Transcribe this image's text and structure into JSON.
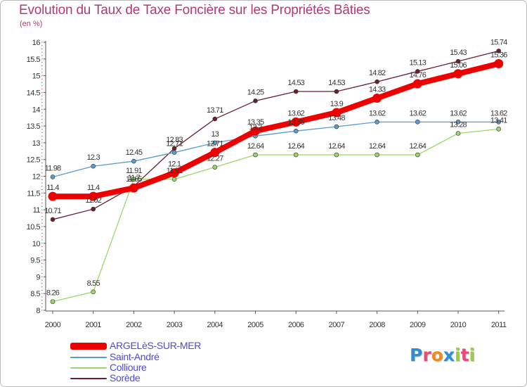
{
  "chart_data": {
    "type": "line",
    "title": "Evolution du Taux de Taxe Foncière sur les Propriétés Bâties",
    "ylabel": "(en %)",
    "xlabel": "",
    "ylim": [
      8,
      16
    ],
    "yticks": [
      "8",
      "8.5",
      "9",
      "9.5",
      "10",
      "10.5",
      "11",
      "11.5",
      "12",
      "12.5",
      "13",
      "13.5",
      "14",
      "14.5",
      "15",
      "15.5",
      "16"
    ],
    "categories": [
      "2000",
      "2001",
      "2002",
      "2003",
      "2004",
      "2005",
      "2006",
      "2007",
      "2008",
      "2009",
      "2010",
      "2011"
    ],
    "series": [
      {
        "name": "Sorède",
        "color": "#6b1f2a",
        "values": [
          10.71,
          11.02,
          11.7,
          12.83,
          13.71,
          14.25,
          14.53,
          14.53,
          14.82,
          15.13,
          15.43,
          15.74
        ],
        "labels": [
          "10.71",
          "11.02",
          "11.7",
          "12.83",
          "13.71",
          "14.25",
          "14.53",
          "14.53",
          "14.82",
          "15.13",
          "15.43",
          "15.74"
        ]
      },
      {
        "name": "Saint-André",
        "color": "#5a9ccd",
        "values": [
          11.98,
          12.3,
          12.45,
          12.71,
          13,
          13.2,
          13.35,
          13.48,
          13.62,
          13.62,
          13.62,
          13.62
        ],
        "labels": [
          "11.98",
          "12.3",
          "12.45",
          "12.71",
          "13",
          "13.2",
          "13.35",
          "13.48",
          "13.62",
          "13.62",
          "13.62",
          "13.62"
        ]
      },
      {
        "name": "Collioure",
        "color": "#99d66b",
        "values": [
          8.26,
          8.55,
          11.91,
          11.91,
          12.27,
          12.64,
          12.64,
          12.64,
          12.64,
          12.64,
          13.28,
          13.41
        ],
        "labels": [
          "8.26",
          "8.55",
          "11.91",
          "11.91",
          "12.27",
          "12.64",
          "12.64",
          "12.64",
          "12.64",
          "12.64",
          "13.28",
          "13.41"
        ]
      },
      {
        "name": "ARGELèS-SUR-MER",
        "color": "#ee0000",
        "values": [
          11.4,
          11.4,
          11.65,
          12.1,
          12.71,
          13.35,
          13.62,
          13.9,
          14.33,
          14.76,
          15.06,
          15.36
        ],
        "labels": [
          "11.4",
          "11.4",
          "11.65",
          "12.1",
          "12.71",
          "13.35",
          "13.62",
          "13.9",
          "14.33",
          "14.76",
          "15.06",
          "15.36"
        ]
      }
    ],
    "legend": [
      {
        "name": "ARGELèS-SUR-MER",
        "color": "#ee0000"
      },
      {
        "name": "Saint-André",
        "color": "#5a9ccd"
      },
      {
        "name": "Collioure",
        "color": "#99d66b"
      },
      {
        "name": "Sorède",
        "color": "#6b1f2a"
      }
    ],
    "grid": false,
    "legend_position": "bottom-left"
  },
  "logo": {
    "letters": [
      "P",
      "r",
      "o",
      "x",
      "i",
      "t",
      "i"
    ],
    "colors": [
      "#2c8fd8",
      "#e84b7a",
      "#f28a1e",
      "#2c8fd8",
      "#9ccd3c",
      "#e84b7a",
      "#9ccd3c"
    ]
  }
}
